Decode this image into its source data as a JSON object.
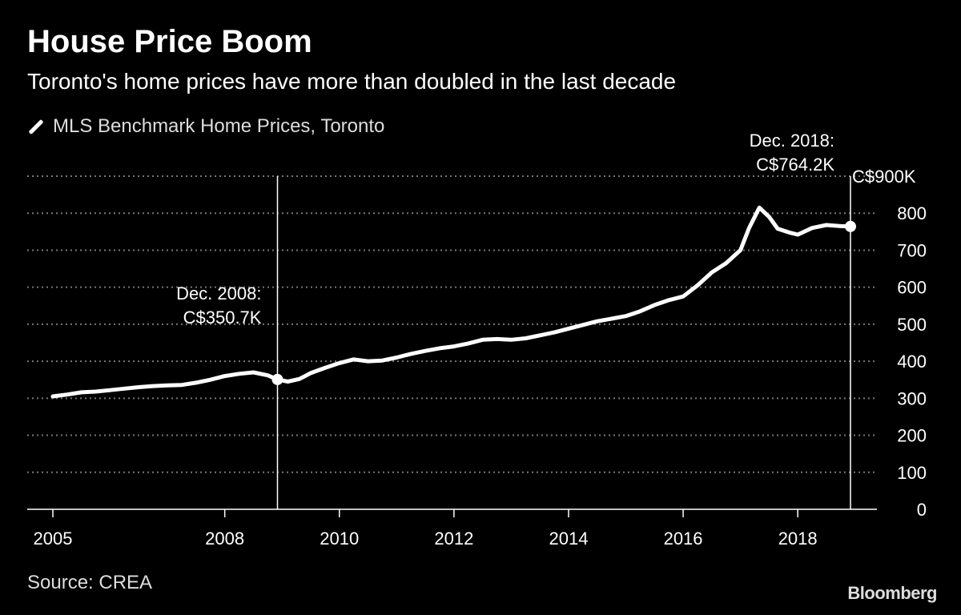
{
  "title": "House Price Boom",
  "subtitle": "Toronto's home prices have more than doubled in the last decade",
  "legend_label": "MLS Benchmark Home Prices, Toronto",
  "source": "Source: CREA",
  "brand": "Bloomberg",
  "chart_data": {
    "type": "line",
    "series": [
      {
        "name": "MLS Benchmark Home Prices, Toronto",
        "color": "#ffffff",
        "points": [
          [
            2005.0,
            305
          ],
          [
            2005.25,
            310
          ],
          [
            2005.5,
            316
          ],
          [
            2005.75,
            318
          ],
          [
            2006.0,
            322
          ],
          [
            2006.25,
            326
          ],
          [
            2006.5,
            330
          ],
          [
            2006.75,
            333
          ],
          [
            2007.0,
            335
          ],
          [
            2007.25,
            336
          ],
          [
            2007.5,
            342
          ],
          [
            2007.75,
            350
          ],
          [
            2008.0,
            360
          ],
          [
            2008.25,
            366
          ],
          [
            2008.5,
            370
          ],
          [
            2008.75,
            362
          ],
          [
            2008.92,
            350.7
          ],
          [
            2009.1,
            345
          ],
          [
            2009.3,
            352
          ],
          [
            2009.5,
            368
          ],
          [
            2009.75,
            382
          ],
          [
            2010.0,
            395
          ],
          [
            2010.25,
            405
          ],
          [
            2010.5,
            400
          ],
          [
            2010.75,
            402
          ],
          [
            2011.0,
            410
          ],
          [
            2011.25,
            420
          ],
          [
            2011.5,
            428
          ],
          [
            2011.75,
            435
          ],
          [
            2012.0,
            440
          ],
          [
            2012.25,
            448
          ],
          [
            2012.5,
            458
          ],
          [
            2012.75,
            460
          ],
          [
            2013.0,
            458
          ],
          [
            2013.25,
            462
          ],
          [
            2013.5,
            470
          ],
          [
            2013.75,
            478
          ],
          [
            2014.0,
            488
          ],
          [
            2014.25,
            498
          ],
          [
            2014.5,
            508
          ],
          [
            2014.75,
            515
          ],
          [
            2015.0,
            522
          ],
          [
            2015.25,
            535
          ],
          [
            2015.5,
            552
          ],
          [
            2015.75,
            565
          ],
          [
            2016.0,
            575
          ],
          [
            2016.25,
            605
          ],
          [
            2016.5,
            640
          ],
          [
            2016.75,
            665
          ],
          [
            2017.0,
            700
          ],
          [
            2017.15,
            760
          ],
          [
            2017.33,
            815
          ],
          [
            2017.5,
            790
          ],
          [
            2017.65,
            758
          ],
          [
            2017.85,
            748
          ],
          [
            2018.0,
            742
          ],
          [
            2018.25,
            760
          ],
          [
            2018.5,
            768
          ],
          [
            2018.75,
            765
          ],
          [
            2018.92,
            764.2
          ]
        ]
      }
    ],
    "x_ticks": [
      2005,
      2008,
      2010,
      2012,
      2014,
      2016,
      2018
    ],
    "y_ticks": [
      0,
      100,
      200,
      300,
      400,
      500,
      600,
      700,
      800,
      900
    ],
    "y_tick_labels": [
      "0",
      "100",
      "200",
      "300",
      "400",
      "500",
      "600",
      "700",
      "800",
      "C$900K"
    ],
    "xlim": [
      2005,
      2018.92
    ],
    "ylim": [
      0,
      900
    ],
    "grid": "horizontal dotted",
    "y_axis_position": "right",
    "annotations": [
      {
        "x": 2008.92,
        "y": 350.7,
        "lines": [
          "Dec. 2008:",
          "C$350.7K"
        ],
        "align": "end"
      },
      {
        "x": 2018.92,
        "y": 764.2,
        "lines": [
          "Dec. 2018:",
          "C$764.2K"
        ],
        "align": "end"
      }
    ]
  }
}
